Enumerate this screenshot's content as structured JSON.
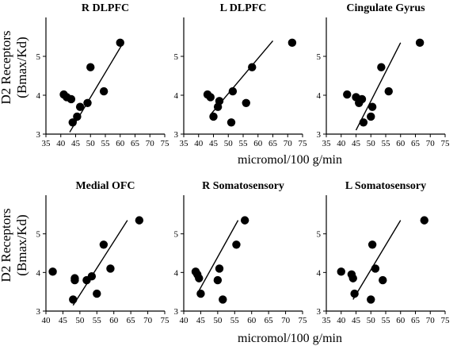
{
  "figure": {
    "xlabel": "micromol/100 g/min",
    "ylabel_line1": "D2 Receptors",
    "ylabel_line2": "(Bmax/Kd)"
  },
  "chart_data": [
    {
      "type": "scatter",
      "title": "R DLPFC",
      "xlabel": "micromol/100 g/min",
      "ylabel": "D2 Receptors (Bmax/Kd)",
      "xlim": [
        35,
        75
      ],
      "ylim": [
        3,
        6
      ],
      "xticks": [
        "35",
        "40",
        "45",
        "50",
        "55",
        "60",
        "65",
        "70",
        "75"
      ],
      "yticks": [
        "3",
        "4",
        "5"
      ],
      "points": [
        [
          41,
          4.02
        ],
        [
          42,
          3.95
        ],
        [
          43.5,
          3.9
        ],
        [
          44,
          3.3
        ],
        [
          45.5,
          3.45
        ],
        [
          46.5,
          3.7
        ],
        [
          49,
          3.8
        ],
        [
          50,
          4.72
        ],
        [
          54.5,
          4.1
        ],
        [
          60,
          5.35
        ]
      ],
      "fit_line": [
        [
          43,
          3.05
        ],
        [
          61,
          5.35
        ]
      ],
      "color": "#000000"
    },
    {
      "type": "scatter",
      "title": "L DLPFC",
      "xlabel": "micromol/100 g/min",
      "ylabel": "D2 Receptors (Bmax/Kd)",
      "xlim": [
        35,
        75
      ],
      "ylim": [
        3,
        6
      ],
      "xticks": [
        "35",
        "40",
        "45",
        "50",
        "55",
        "60",
        "65",
        "70",
        "75"
      ],
      "yticks": [
        "3",
        "4",
        "5"
      ],
      "points": [
        [
          43,
          4.02
        ],
        [
          44,
          3.95
        ],
        [
          45,
          3.45
        ],
        [
          46.5,
          3.7
        ],
        [
          47,
          3.85
        ],
        [
          51,
          3.3
        ],
        [
          51.5,
          4.1
        ],
        [
          56,
          3.8
        ],
        [
          58,
          4.72
        ],
        [
          71.5,
          5.35
        ]
      ],
      "fit_line": [
        [
          44,
          3.5
        ],
        [
          65,
          5.4
        ]
      ],
      "color": "#000000"
    },
    {
      "type": "scatter",
      "title": "Cingulate Gyrus",
      "xlabel": "micromol/100 g/min",
      "ylabel": "D2 Receptors (Bmax/Kd)",
      "xlim": [
        35,
        75
      ],
      "ylim": [
        3,
        6
      ],
      "xticks": [
        "35",
        "40",
        "45",
        "50",
        "55",
        "60",
        "65",
        "70",
        "75"
      ],
      "yticks": [
        "3",
        "4",
        "5"
      ],
      "points": [
        [
          42,
          4.02
        ],
        [
          45,
          3.95
        ],
        [
          46,
          3.8
        ],
        [
          47,
          3.9
        ],
        [
          47.5,
          3.3
        ],
        [
          50,
          3.45
        ],
        [
          50.5,
          3.7
        ],
        [
          53.5,
          4.72
        ],
        [
          56,
          4.1
        ],
        [
          66.5,
          5.35
        ]
      ],
      "fit_line": [
        [
          45,
          3.1
        ],
        [
          60,
          5.35
        ]
      ],
      "color": "#000000"
    },
    {
      "type": "scatter",
      "title": "Medial OFC",
      "xlabel": "micromol/100 g/min",
      "ylabel": "D2 Receptors (Bmax/Kd)",
      "xlim": [
        40,
        75
      ],
      "ylim": [
        3,
        6
      ],
      "xticks": [
        "40",
        "45",
        "50",
        "55",
        "60",
        "65",
        "70",
        "75"
      ],
      "yticks": [
        "3",
        "4",
        "5"
      ],
      "points": [
        [
          42,
          4.02
        ],
        [
          48,
          3.3
        ],
        [
          48.5,
          3.8
        ],
        [
          48.5,
          3.85
        ],
        [
          52,
          3.8
        ],
        [
          53.5,
          3.9
        ],
        [
          55,
          3.45
        ],
        [
          57,
          4.72
        ],
        [
          59,
          4.1
        ],
        [
          67.5,
          5.35
        ]
      ],
      "fit_line": [
        [
          48,
          3.15
        ],
        [
          64,
          5.35
        ]
      ],
      "color": "#000000"
    },
    {
      "type": "scatter",
      "title": "R Somatosensory",
      "xlabel": "micromol/100 g/min",
      "ylabel": "D2 Receptors (Bmax/Kd)",
      "xlim": [
        40,
        75
      ],
      "ylim": [
        3,
        6
      ],
      "xticks": [
        "40",
        "45",
        "50",
        "55",
        "60",
        "65",
        "70",
        "75"
      ],
      "yticks": [
        "3",
        "4",
        "5"
      ],
      "points": [
        [
          43.5,
          4.02
        ],
        [
          44,
          3.95
        ],
        [
          44.5,
          3.85
        ],
        [
          45,
          3.45
        ],
        [
          50,
          3.8
        ],
        [
          50.5,
          4.1
        ],
        [
          51.5,
          3.3
        ],
        [
          55.5,
          4.72
        ],
        [
          58,
          5.35
        ]
      ],
      "fit_line": [
        [
          44,
          3.45
        ],
        [
          56,
          5.35
        ]
      ],
      "color": "#000000"
    },
    {
      "type": "scatter",
      "title": "L Somatosensory",
      "xlabel": "micromol/100 g/min",
      "ylabel": "D2 Receptors (Bmax/Kd)",
      "xlim": [
        35,
        75
      ],
      "ylim": [
        3,
        6
      ],
      "xticks": [
        "35",
        "40",
        "45",
        "50",
        "55",
        "60",
        "65",
        "70",
        "75"
      ],
      "yticks": [
        "3",
        "4",
        "5"
      ],
      "points": [
        [
          40,
          4.02
        ],
        [
          43.5,
          3.95
        ],
        [
          44,
          3.85
        ],
        [
          44.5,
          3.45
        ],
        [
          50,
          3.3
        ],
        [
          50.5,
          4.72
        ],
        [
          51.5,
          4.1
        ],
        [
          54,
          3.8
        ],
        [
          68,
          5.35
        ]
      ],
      "fit_line": [
        [
          44,
          3.3
        ],
        [
          60,
          5.35
        ]
      ],
      "color": "#000000"
    }
  ]
}
